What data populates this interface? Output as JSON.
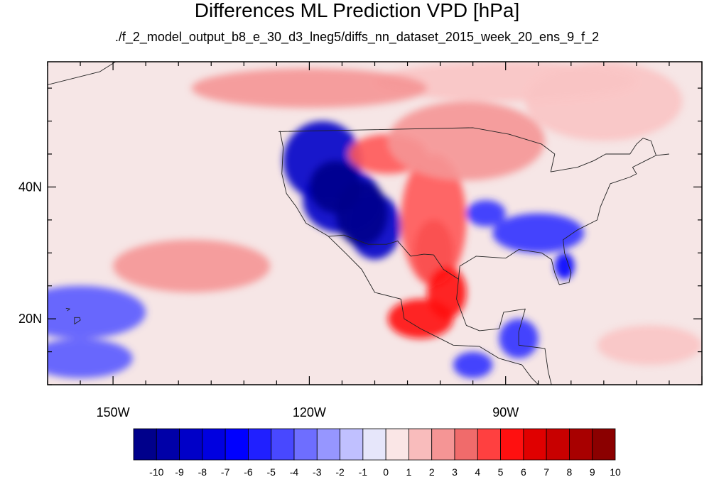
{
  "title": "Differences ML Prediction VPD [hPa]",
  "subtitle": "./f_2_model_output_b8_e_30_d3_lneg5/diffs_nn_dataset_2015_week_20_ens_9_f_2",
  "map": {
    "projection": "cylindrical-equidistant",
    "lon_range": [
      -160,
      -60
    ],
    "lat_range": [
      10,
      59
    ],
    "x_ticks": [
      {
        "value": -150,
        "label": "150W"
      },
      {
        "value": -120,
        "label": "120W"
      },
      {
        "value": -90,
        "label": "90W"
      }
    ],
    "y_ticks": [
      {
        "value": 40,
        "label": "40N"
      },
      {
        "value": 20,
        "label": "20N"
      }
    ],
    "background_color": "#f6e6e6",
    "features": [
      {
        "name": "pacific-northwest-negative",
        "level": -9,
        "color": "#0000c8"
      },
      {
        "name": "southwest-negative",
        "level": -10,
        "color": "#00008b"
      },
      {
        "name": "texas-positive",
        "level": 8,
        "color": "#c80000"
      },
      {
        "name": "plains-positive",
        "level": 4,
        "color": "#ff5858"
      },
      {
        "name": "southeast-negative",
        "level": -5,
        "color": "#3030ff"
      },
      {
        "name": "florida-negative",
        "level": -6,
        "color": "#0000ff"
      },
      {
        "name": "north-atlantic-positive",
        "level": 1,
        "color": "#f9c4c4"
      },
      {
        "name": "pacific-positive",
        "level": 2,
        "color": "#f59595"
      },
      {
        "name": "hawaii-negative",
        "level": -4,
        "color": "#5a5aff"
      },
      {
        "name": "mexico-positive",
        "level": 6,
        "color": "#ff1010"
      },
      {
        "name": "central-america-negative",
        "level": -5,
        "color": "#3030ff"
      }
    ]
  },
  "colorbar": {
    "labels": [
      "-10",
      "-9",
      "-8",
      "-7",
      "-6",
      "-5",
      "-4",
      "-3",
      "-2",
      "-1",
      "0",
      "1",
      "2",
      "3",
      "4",
      "5",
      "6",
      "7",
      "8",
      "9",
      "10"
    ],
    "colors": [
      "#00008b",
      "#0000a8",
      "#0000c8",
      "#0000e0",
      "#0000ff",
      "#2020ff",
      "#4848ff",
      "#6e6eff",
      "#9696ff",
      "#c0c0ff",
      "#e6e6fa",
      "#fae6e6",
      "#f9bcbc",
      "#f59595",
      "#f06b6b",
      "#ff4040",
      "#ff1010",
      "#e00000",
      "#c80000",
      "#a80000",
      "#8b0000"
    ]
  }
}
